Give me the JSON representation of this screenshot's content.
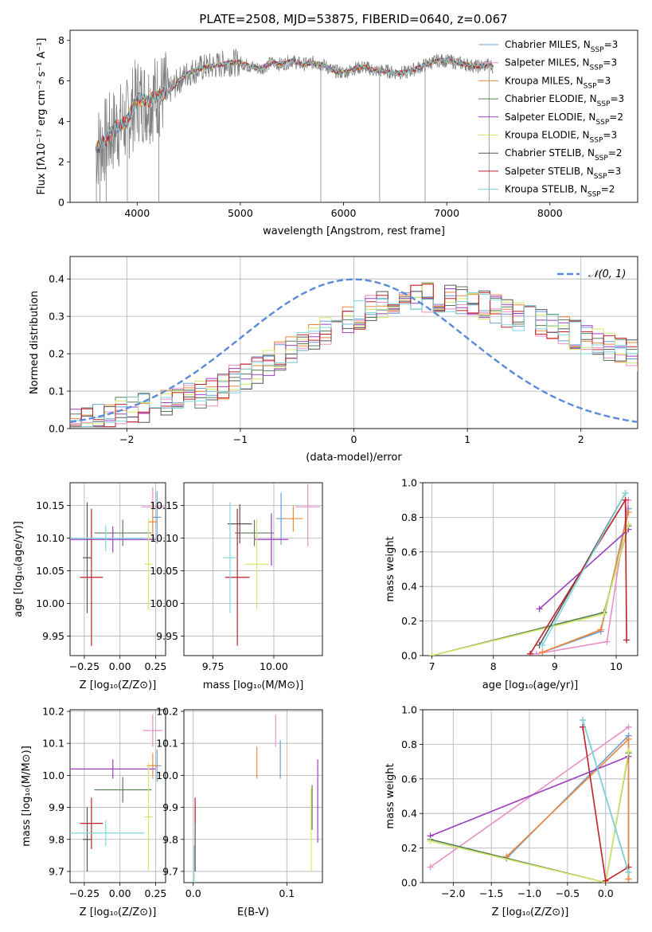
{
  "figure": {
    "title": "PLATE=2508, MJD=53875, FIBERID=0640, z=0.067"
  },
  "palette": {
    "Chabrier MILES": "#6a9fd6",
    "Salpeter MILES": "#e88fc8",
    "Kroupa MILES": "#f0883a",
    "Chabrier ELODIE": "#5a7f5a",
    "Salpeter ELODIE": "#9b3fbf",
    "Kroupa ELODIE": "#d4e86a",
    "Chabrier STELIB": "#555555",
    "Salpeter STELIB": "#c0202a",
    "Kroupa STELIB": "#7fd8df",
    "data": "#808080",
    "normal": "#5b8ad8"
  },
  "chart_data": [
    {
      "id": "spectrum",
      "type": "line",
      "xlabel": "wavelength [Angstrom, rest frame]",
      "ylabel": "Flux [fλ10⁻¹⁷ erg cm⁻² s⁻¹ A⁻¹]",
      "xlim": [
        3350,
        8850
      ],
      "ylim": [
        0,
        8.5
      ],
      "xticks": [
        4000,
        5000,
        6000,
        7000,
        8000
      ],
      "yticks": [
        0,
        2,
        4,
        6,
        8
      ],
      "grid": false,
      "legend_position": "right",
      "series": [
        {
          "name": "Chabrier MILES",
          "nssp": 3
        },
        {
          "name": "Salpeter MILES",
          "nssp": 3
        },
        {
          "name": "Kroupa MILES",
          "nssp": 3
        },
        {
          "name": "Chabrier ELODIE",
          "nssp": 3
        },
        {
          "name": "Salpeter ELODIE",
          "nssp": 2
        },
        {
          "name": "Kroupa ELODIE",
          "nssp": 3
        },
        {
          "name": "Chabrier STELIB",
          "nssp": 2
        },
        {
          "name": "Salpeter STELIB",
          "nssp": 3
        },
        {
          "name": "Kroupa STELIB",
          "nssp": 2
        }
      ],
      "nssp_label": "N",
      "nssp_sub": "SSP",
      "continuum": {
        "x": [
          3600,
          3650,
          3700,
          3800,
          3900,
          4000,
          4100,
          4200,
          4300,
          4400,
          4500,
          4600,
          4700,
          4800,
          4900,
          5000,
          5100,
          5200,
          5300,
          5400,
          5500,
          5600,
          5700,
          5800,
          5900,
          6000,
          6100,
          6200,
          6300,
          6400,
          6500,
          6600,
          6700,
          6800,
          6900,
          7000,
          7100,
          7200,
          7300,
          7400,
          7450
        ],
        "y": [
          2.6,
          2.9,
          3.1,
          3.7,
          4.0,
          5.1,
          5.0,
          5.3,
          5.4,
          6.0,
          6.4,
          6.6,
          6.7,
          6.8,
          6.9,
          6.9,
          6.7,
          6.6,
          6.9,
          6.8,
          7.0,
          6.8,
          6.9,
          6.8,
          6.5,
          6.4,
          6.6,
          6.7,
          6.5,
          6.5,
          6.4,
          6.4,
          6.6,
          6.8,
          7.0,
          7.0,
          6.9,
          6.8,
          6.7,
          6.8,
          6.7
        ]
      }
    },
    {
      "id": "residuals",
      "type": "line",
      "xlabel": "(data-model)/error",
      "ylabel": "Normed distribution",
      "xlim": [
        -2.5,
        2.5
      ],
      "ylim": [
        0,
        0.46
      ],
      "xticks": [
        -2,
        -1,
        0,
        1,
        2
      ],
      "yticks": [
        0.0,
        0.1,
        0.2,
        0.3,
        0.4
      ],
      "grid": true,
      "legend": "𝒩(0, 1)",
      "legend_position": "top-right",
      "normal": {
        "mu": 0,
        "sigma": 1
      },
      "hist_bins": {
        "start": -2.5,
        "width": 0.1,
        "base": [
          0.015,
          0.02,
          0.03,
          0.035,
          0.045,
          0.05,
          0.055,
          0.06,
          0.065,
          0.07,
          0.085,
          0.09,
          0.1,
          0.115,
          0.13,
          0.145,
          0.16,
          0.175,
          0.195,
          0.215,
          0.23,
          0.245,
          0.26,
          0.275,
          0.29,
          0.305,
          0.32,
          0.33,
          0.34,
          0.345,
          0.35,
          0.35,
          0.35,
          0.35,
          0.345,
          0.34,
          0.33,
          0.32,
          0.31,
          0.3,
          0.29,
          0.28,
          0.27,
          0.26,
          0.25,
          0.24,
          0.23,
          0.22,
          0.21,
          0.2,
          0.19,
          0.18,
          0.17,
          0.16,
          0.15,
          0.14,
          0.13,
          0.12,
          0.11,
          0.1
        ]
      }
    },
    {
      "id": "age-vs-Z",
      "type": "scatter",
      "xlabel": "Z [log₁₀(Z/Z⊙)]",
      "ylabel": "age  [log₁₀(age/yr)]",
      "xlim": [
        -0.35,
        0.32
      ],
      "ylim": [
        9.92,
        10.185
      ],
      "xticks": [
        -0.25,
        0.0,
        0.25
      ],
      "xtick_labels": [
        "−0.25",
        "0.00",
        "0.25"
      ],
      "yticks": [
        9.95,
        10.0,
        10.05,
        10.1,
        10.15
      ],
      "yticks_side": "left",
      "grid": true,
      "points": [
        {
          "s": "Chabrier MILES",
          "x": 0.26,
          "xe": 0.03,
          "y": 10.132,
          "ye": 0.04
        },
        {
          "s": "Salpeter MILES",
          "x": 0.23,
          "xe": 0.08,
          "y": 10.148,
          "ye": 0.03
        },
        {
          "s": "Kroupa MILES",
          "x": 0.23,
          "xe": 0.03,
          "y": 10.125,
          "ye": 0.03
        },
        {
          "s": "Chabrier ELODIE",
          "x": 0.02,
          "xe": 0.2,
          "y": 10.108,
          "ye": 0.02
        },
        {
          "s": "Salpeter ELODIE",
          "x": -0.05,
          "xe": 0.3,
          "y": 10.098,
          "ye": 0.02
        },
        {
          "s": "Kroupa ELODIE",
          "x": 0.2,
          "xe": 0.03,
          "y": 10.06,
          "ye": 0.07
        },
        {
          "s": "Chabrier STELIB",
          "x": -0.23,
          "xe": 0.03,
          "y": 10.07,
          "ye": 0.085
        },
        {
          "s": "Salpeter STELIB",
          "x": -0.2,
          "xe": 0.08,
          "y": 10.04,
          "ye": 0.105
        },
        {
          "s": "Kroupa STELIB",
          "x": -0.1,
          "xe": 0.27,
          "y": 10.1,
          "ye": 0.02
        }
      ]
    },
    {
      "id": "age-vs-mass",
      "type": "scatter",
      "xlabel": "mass [log₁₀(M/M⊙)]",
      "ylabel": "",
      "xlim": [
        9.63,
        10.2
      ],
      "ylim": [
        9.92,
        10.185
      ],
      "xticks": [
        9.75,
        10.0
      ],
      "xtick_labels": [
        "9.75",
        "10.00"
      ],
      "yticks": [
        9.95,
        10.0,
        10.05,
        10.1,
        10.15
      ],
      "grid": true,
      "points": [
        {
          "s": "Chabrier MILES",
          "x": 10.03,
          "xe": 0.02,
          "y": 10.13,
          "ye": 0.04
        },
        {
          "s": "Salpeter MILES",
          "x": 10.14,
          "xe": 0.05,
          "y": 10.148,
          "ye": 0.06
        },
        {
          "s": "Kroupa MILES",
          "x": 10.08,
          "xe": 0.04,
          "y": 10.13,
          "ye": 0.02
        },
        {
          "s": "Chabrier ELODIE",
          "x": 9.92,
          "xe": 0.08,
          "y": 10.108,
          "ye": 0.02
        },
        {
          "s": "Salpeter ELODIE",
          "x": 9.99,
          "xe": 0.07,
          "y": 10.098,
          "ye": 0.04
        },
        {
          "s": "Kroupa ELODIE",
          "x": 9.93,
          "xe": 0.05,
          "y": 10.06,
          "ye": 0.07
        },
        {
          "s": "Chabrier STELIB",
          "x": 9.86,
          "xe": 0.05,
          "y": 10.122,
          "ye": 0.03
        },
        {
          "s": "Salpeter STELIB",
          "x": 9.85,
          "xe": 0.05,
          "y": 10.04,
          "ye": 0.105
        },
        {
          "s": "Kroupa STELIB",
          "x": 9.82,
          "xe": 0.03,
          "y": 10.07,
          "ye": 0.085
        }
      ]
    },
    {
      "id": "weight-vs-age",
      "type": "line",
      "xlabel": "age  [log₁₀(age/yr)]",
      "ylabel": "mass weight",
      "xlim": [
        6.85,
        10.35
      ],
      "ylim": [
        0,
        1.0
      ],
      "xticks": [
        7,
        8,
        9,
        10
      ],
      "yticks": [
        0.0,
        0.2,
        0.4,
        0.6,
        0.8,
        1.0
      ],
      "grid": true,
      "series": [
        {
          "s": "Chabrier MILES",
          "x": [
            8.8,
            9.75,
            10.2
          ],
          "y": [
            0.02,
            0.14,
            0.85
          ]
        },
        {
          "s": "Salpeter MILES",
          "x": [
            8.7,
            9.85,
            10.2
          ],
          "y": [
            0.01,
            0.08,
            0.9
          ]
        },
        {
          "s": "Kroupa MILES",
          "x": [
            8.8,
            9.75,
            10.2
          ],
          "y": [
            0.02,
            0.15,
            0.83
          ]
        },
        {
          "s": "Chabrier ELODIE",
          "x": [
            7.0,
            9.8,
            10.2
          ],
          "y": [
            0.0,
            0.25,
            0.75
          ]
        },
        {
          "s": "Salpeter ELODIE",
          "x": [
            8.75,
            10.2
          ],
          "y": [
            0.27,
            0.73
          ]
        },
        {
          "s": "Kroupa ELODIE",
          "x": [
            7.0,
            9.8,
            10.2
          ],
          "y": [
            0.0,
            0.24,
            0.76
          ]
        },
        {
          "s": "Chabrier STELIB",
          "x": [
            8.75,
            10.15
          ],
          "y": [
            0.06,
            0.94
          ]
        },
        {
          "s": "Salpeter STELIB",
          "x": [
            8.6,
            10.15,
            10.17
          ],
          "y": [
            0.01,
            0.9,
            0.09
          ]
        },
        {
          "s": "Kroupa STELIB",
          "x": [
            8.8,
            10.15
          ],
          "y": [
            0.06,
            0.94
          ]
        }
      ]
    },
    {
      "id": "mass-vs-Z",
      "type": "scatter",
      "xlabel": "Z [log₁₀(Z/Z⊙)]",
      "ylabel": "mass [log₁₀(M/M⊙)]",
      "xlim": [
        -0.35,
        0.32
      ],
      "ylim": [
        9.665,
        10.205
      ],
      "xticks": [
        -0.25,
        0.0,
        0.25
      ],
      "xtick_labels": [
        "−0.25",
        "0.00",
        "0.25"
      ],
      "yticks": [
        9.7,
        9.8,
        9.9,
        10.0,
        10.1,
        10.2
      ],
      "yticks_side": "left",
      "grid": true,
      "points": [
        {
          "s": "Chabrier MILES",
          "x": 0.26,
          "xe": 0.03,
          "y": 10.03,
          "ye": 0.05
        },
        {
          "s": "Salpeter MILES",
          "x": 0.23,
          "xe": 0.07,
          "y": 10.14,
          "ye": 0.05
        },
        {
          "s": "Kroupa MILES",
          "x": 0.23,
          "xe": 0.04,
          "y": 10.03,
          "ye": 0.04
        },
        {
          "s": "Chabrier ELODIE",
          "x": 0.02,
          "xe": 0.2,
          "y": 9.955,
          "ye": 0.04
        },
        {
          "s": "Salpeter ELODIE",
          "x": -0.05,
          "xe": 0.3,
          "y": 10.02,
          "ye": 0.03
        },
        {
          "s": "Kroupa ELODIE",
          "x": 0.2,
          "xe": 0.03,
          "y": 9.87,
          "ye": 0.17
        },
        {
          "s": "Chabrier STELIB",
          "x": -0.23,
          "xe": 0.03,
          "y": 9.8,
          "ye": 0.1
        },
        {
          "s": "Salpeter STELIB",
          "x": -0.2,
          "xe": 0.08,
          "y": 9.85,
          "ye": 0.08
        },
        {
          "s": "Kroupa STELIB",
          "x": -0.1,
          "xe": 0.27,
          "y": 9.82,
          "ye": 0.04
        }
      ]
    },
    {
      "id": "mass-vs-EBV",
      "type": "scatter",
      "xlabel": "E(B-V)",
      "ylabel": "",
      "xlim": [
        -0.01,
        0.138
      ],
      "ylim": [
        9.665,
        10.205
      ],
      "xticks": [
        0.0,
        0.1
      ],
      "xtick_labels": [
        "0.0",
        "0.1"
      ],
      "yticks": [
        9.7,
        9.8,
        9.9,
        10.0,
        10.1,
        10.2
      ],
      "grid": true,
      "points": [
        {
          "s": "Chabrier MILES",
          "x": 0.093,
          "xe": 0,
          "y": 10.05,
          "ye": 0.06
        },
        {
          "s": "Salpeter MILES",
          "x": 0.088,
          "xe": 0,
          "y": 10.14,
          "ye": 0.05
        },
        {
          "s": "Kroupa MILES",
          "x": 0.068,
          "xe": 0,
          "y": 10.04,
          "ye": 0.05
        },
        {
          "s": "Chabrier ELODIE",
          "x": 0.127,
          "xe": 0,
          "y": 9.9,
          "ye": 0.07
        },
        {
          "s": "Salpeter ELODIE",
          "x": 0.133,
          "xe": 0,
          "y": 9.92,
          "ye": 0.13
        },
        {
          "s": "Kroupa ELODIE",
          "x": 0.126,
          "xe": 0,
          "y": 9.83,
          "ye": 0.13
        },
        {
          "s": "Chabrier STELIB",
          "x": 0.002,
          "xe": 0,
          "y": 9.8,
          "ye": 0.1
        },
        {
          "s": "Salpeter STELIB",
          "x": 0.002,
          "xe": 0,
          "y": 9.89,
          "ye": 0.04
        },
        {
          "s": "Kroupa STELIB",
          "x": 0.001,
          "xe": 0,
          "y": 9.72,
          "ye": 0.06
        }
      ]
    },
    {
      "id": "weight-vs-Z",
      "type": "line",
      "xlabel": "Z [log₁₀(Z/Z⊙)]",
      "ylabel": "mass weight",
      "xlim": [
        -2.4,
        0.42
      ],
      "ylim": [
        0,
        1.0
      ],
      "xticks": [
        -2.0,
        -1.5,
        -1.0,
        -0.5,
        0.0
      ],
      "xtick_labels": [
        "−2.0",
        "−1.5",
        "−1.0",
        "−0.5",
        "0.0"
      ],
      "yticks": [
        0.0,
        0.2,
        0.4,
        0.6,
        0.8,
        1.0
      ],
      "grid": true,
      "series": [
        {
          "s": "Chabrier MILES",
          "x": [
            -1.3,
            0.3,
            0.3
          ],
          "y": [
            0.14,
            0.85,
            0.02
          ]
        },
        {
          "s": "Salpeter MILES",
          "x": [
            -2.3,
            0.3
          ],
          "y": [
            0.09,
            0.9
          ]
        },
        {
          "s": "Kroupa MILES",
          "x": [
            -1.3,
            0.3,
            0.3
          ],
          "y": [
            0.15,
            0.83,
            0.02
          ]
        },
        {
          "s": "Chabrier ELODIE",
          "x": [
            -2.3,
            0.0,
            0.3
          ],
          "y": [
            0.25,
            0.0,
            0.75
          ]
        },
        {
          "s": "Salpeter ELODIE",
          "x": [
            -2.3,
            0.3
          ],
          "y": [
            0.27,
            0.73
          ]
        },
        {
          "s": "Kroupa ELODIE",
          "x": [
            -2.3,
            0.0,
            0.3
          ],
          "y": [
            0.24,
            0.0,
            0.76
          ]
        },
        {
          "s": "Chabrier STELIB",
          "x": [
            -0.3,
            0.3
          ],
          "y": [
            0.94,
            0.06
          ]
        },
        {
          "s": "Salpeter STELIB",
          "x": [
            -0.3,
            0.0,
            0.3
          ],
          "y": [
            0.9,
            0.01,
            0.09
          ]
        },
        {
          "s": "Kroupa STELIB",
          "x": [
            -0.3,
            0.3
          ],
          "y": [
            0.94,
            0.06
          ]
        }
      ]
    }
  ]
}
